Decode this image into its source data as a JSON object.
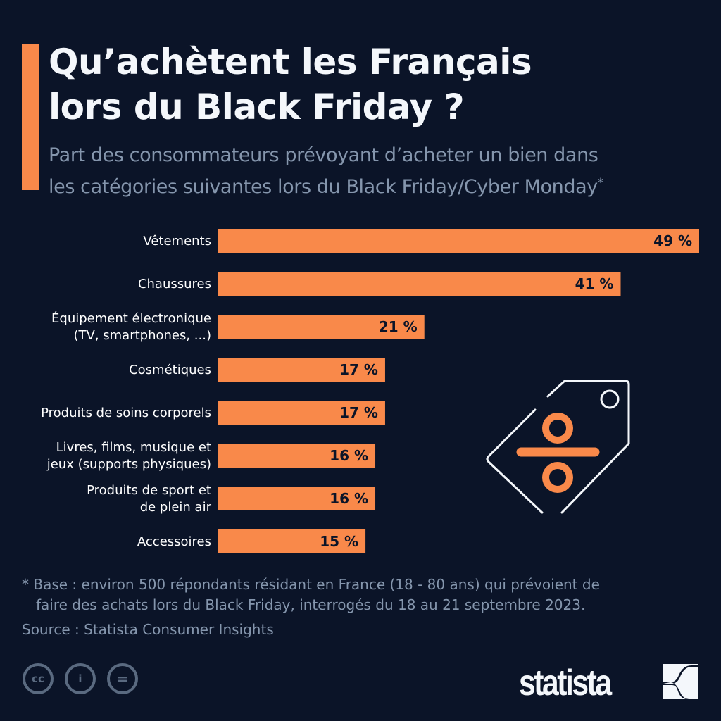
{
  "header": {
    "title_line1": "Qu’achètent les Français",
    "title_line2": "lors du Black Friday ?",
    "subtitle_line1": "Part des consommateurs prévoyant d’acheter un bien dans",
    "subtitle_line2": "les catégories suivantes lors du Black Friday/Cyber Monday",
    "subtitle_mark": "*"
  },
  "chart_data": {
    "type": "bar",
    "orientation": "horizontal",
    "categories": [
      [
        "Vêtements"
      ],
      [
        "Chaussures"
      ],
      [
        "Équipement électronique",
        "(TV, smartphones, ...)"
      ],
      [
        "Cosmétiques"
      ],
      [
        "Produits de soins corporels"
      ],
      [
        "Livres, films, musique et",
        "jeux (supports physiques)"
      ],
      [
        "Produits de sport et",
        "de plein air"
      ],
      [
        "Accessoires"
      ]
    ],
    "values": [
      49,
      41,
      21,
      17,
      17,
      16,
      16,
      15
    ],
    "value_labels": [
      "49 %",
      "41 %",
      "21 %",
      "17 %",
      "17 %",
      "16 %",
      "16 %",
      "15 %"
    ],
    "xlim": [
      0,
      49
    ],
    "grid": false,
    "bar_color": "#f9894a"
  },
  "colors": {
    "background": "#0b1428",
    "accent": "#f9894a",
    "muted": "#8596ad"
  },
  "footer": {
    "note_line1": "* Base : environ 500 répondants résidant en France (18 - 80 ans) qui prévoient de",
    "note_line2": "faire des achats lors du Black Friday, interrogés du 18 au 21 septembre 2023.",
    "source": "Source : Statista Consumer Insights",
    "cc_icons": [
      "cc-icon",
      "attribution-icon",
      "no-derivatives-icon"
    ],
    "logo_text": "statista"
  },
  "illustration": "price-tag-percent-icon"
}
